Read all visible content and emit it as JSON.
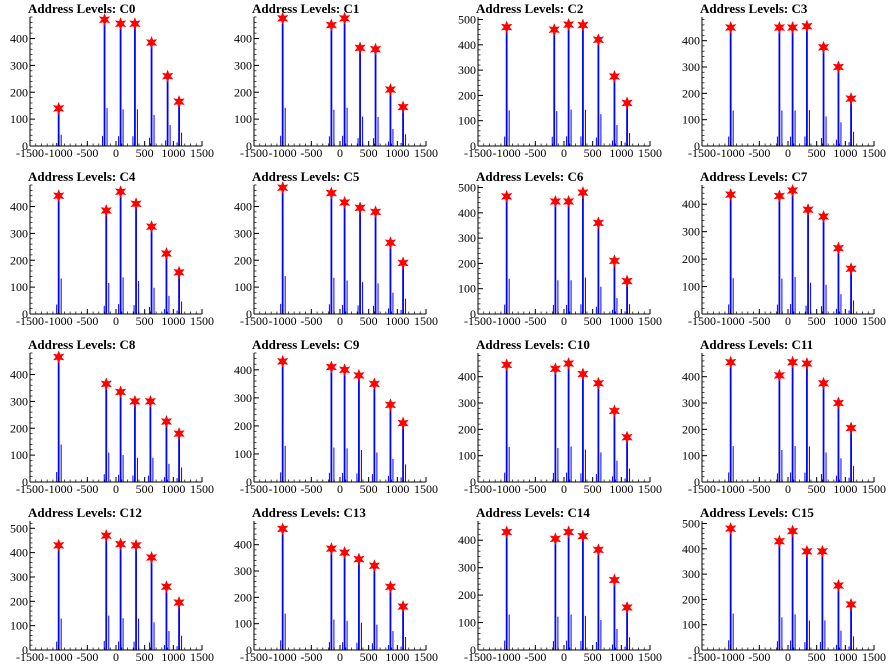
{
  "colors": {
    "background": "#ffffff",
    "histogram": "#0000ff",
    "marker": "#ff0000",
    "axis": "#000000"
  },
  "chart_data": [
    {
      "type": "bar",
      "title": "Address Levels: C0",
      "xlim": [
        -1500,
        1500
      ],
      "ylim": [
        0,
        480
      ],
      "yticks": [
        0,
        100,
        200,
        300,
        400
      ],
      "xtick_labels": [
        "-1500",
        "-1000",
        "-500",
        "0",
        "500",
        "1000",
        "1500"
      ],
      "peaks": [
        {
          "x": -1000,
          "y": 140
        },
        {
          "x": -200,
          "y": 470
        },
        {
          "x": 80,
          "y": 455
        },
        {
          "x": 330,
          "y": 455
        },
        {
          "x": 620,
          "y": 385
        },
        {
          "x": 900,
          "y": 260
        },
        {
          "x": 1100,
          "y": 165
        }
      ]
    },
    {
      "type": "bar",
      "title": "Address Levels: C1",
      "xlim": [
        -1500,
        1500
      ],
      "ylim": [
        0,
        480
      ],
      "yticks": [
        0,
        100,
        200,
        300,
        400
      ],
      "xtick_labels": [
        "-1500",
        "-1000",
        "-500",
        "0",
        "500",
        "1000",
        "1500"
      ],
      "peaks": [
        {
          "x": -1000,
          "y": 475
        },
        {
          "x": -150,
          "y": 450
        },
        {
          "x": 80,
          "y": 475
        },
        {
          "x": 350,
          "y": 365
        },
        {
          "x": 620,
          "y": 360
        },
        {
          "x": 880,
          "y": 210
        },
        {
          "x": 1100,
          "y": 145
        }
      ]
    },
    {
      "type": "bar",
      "title": "Address Levels: C2",
      "xlim": [
        -1500,
        1500
      ],
      "ylim": [
        0,
        510
      ],
      "yticks": [
        0,
        100,
        200,
        300,
        400,
        500
      ],
      "xtick_labels": [
        "-1500",
        "-1000",
        "-500",
        "0",
        "500",
        "1000",
        "1500"
      ],
      "peaks": [
        {
          "x": -1000,
          "y": 470
        },
        {
          "x": -170,
          "y": 460
        },
        {
          "x": 80,
          "y": 480
        },
        {
          "x": 330,
          "y": 478
        },
        {
          "x": 600,
          "y": 420
        },
        {
          "x": 880,
          "y": 275
        },
        {
          "x": 1100,
          "y": 170
        }
      ]
    },
    {
      "type": "bar",
      "title": "Address Levels: C3",
      "xlim": [
        -1500,
        1500
      ],
      "ylim": [
        0,
        490
      ],
      "yticks": [
        0,
        100,
        200,
        300,
        400
      ],
      "xtick_labels": [
        "-1500",
        "-1000",
        "-500",
        "0",
        "500",
        "1000",
        "1500"
      ],
      "peaks": [
        {
          "x": -1000,
          "y": 450
        },
        {
          "x": -150,
          "y": 450
        },
        {
          "x": 80,
          "y": 450
        },
        {
          "x": 330,
          "y": 455
        },
        {
          "x": 620,
          "y": 375
        },
        {
          "x": 880,
          "y": 300
        },
        {
          "x": 1100,
          "y": 180
        }
      ]
    },
    {
      "type": "bar",
      "title": "Address Levels: C4",
      "xlim": [
        -1500,
        1500
      ],
      "ylim": [
        0,
        480
      ],
      "yticks": [
        0,
        100,
        200,
        300,
        400
      ],
      "xtick_labels": [
        "-1500",
        "-1000",
        "-500",
        "0",
        "500",
        "1000",
        "1500"
      ],
      "peaks": [
        {
          "x": -1000,
          "y": 440
        },
        {
          "x": -170,
          "y": 385
        },
        {
          "x": 80,
          "y": 455
        },
        {
          "x": 350,
          "y": 410
        },
        {
          "x": 620,
          "y": 325
        },
        {
          "x": 880,
          "y": 225
        },
        {
          "x": 1100,
          "y": 155
        }
      ]
    },
    {
      "type": "bar",
      "title": "Address Levels: C5",
      "xlim": [
        -1500,
        1500
      ],
      "ylim": [
        0,
        480
      ],
      "yticks": [
        0,
        100,
        200,
        300,
        400
      ],
      "xtick_labels": [
        "-1500",
        "-1000",
        "-500",
        "0",
        "500",
        "1000",
        "1500"
      ],
      "peaks": [
        {
          "x": -1000,
          "y": 470
        },
        {
          "x": -150,
          "y": 450
        },
        {
          "x": 80,
          "y": 415
        },
        {
          "x": 350,
          "y": 395
        },
        {
          "x": 620,
          "y": 380
        },
        {
          "x": 880,
          "y": 265
        },
        {
          "x": 1100,
          "y": 190
        }
      ]
    },
    {
      "type": "bar",
      "title": "Address Levels: C6",
      "xlim": [
        -1500,
        1500
      ],
      "ylim": [
        0,
        510
      ],
      "yticks": [
        0,
        100,
        200,
        300,
        400,
        500
      ],
      "xtick_labels": [
        "-1500",
        "-1000",
        "-500",
        "0",
        "500",
        "1000",
        "1500"
      ],
      "peaks": [
        {
          "x": -1000,
          "y": 465
        },
        {
          "x": -150,
          "y": 445
        },
        {
          "x": 80,
          "y": 445
        },
        {
          "x": 330,
          "y": 480
        },
        {
          "x": 600,
          "y": 360
        },
        {
          "x": 880,
          "y": 210
        },
        {
          "x": 1100,
          "y": 130
        }
      ]
    },
    {
      "type": "bar",
      "title": "Address Levels: C7",
      "xlim": [
        -1500,
        1500
      ],
      "ylim": [
        0,
        470
      ],
      "yticks": [
        0,
        100,
        200,
        300,
        400
      ],
      "xtick_labels": [
        "-1500",
        "-1000",
        "-500",
        "0",
        "500",
        "1000",
        "1500"
      ],
      "peaks": [
        {
          "x": -1000,
          "y": 435
        },
        {
          "x": -150,
          "y": 430
        },
        {
          "x": 80,
          "y": 450
        },
        {
          "x": 350,
          "y": 380
        },
        {
          "x": 620,
          "y": 355
        },
        {
          "x": 880,
          "y": 240
        },
        {
          "x": 1100,
          "y": 165
        }
      ]
    },
    {
      "type": "bar",
      "title": "Address Levels: C8",
      "xlim": [
        -1500,
        1500
      ],
      "ylim": [
        0,
        480
      ],
      "yticks": [
        0,
        100,
        200,
        300,
        400
      ],
      "xtick_labels": [
        "-1500",
        "-1000",
        "-500",
        "0",
        "500",
        "1000",
        "1500"
      ],
      "peaks": [
        {
          "x": -1000,
          "y": 465
        },
        {
          "x": -170,
          "y": 365
        },
        {
          "x": 80,
          "y": 335
        },
        {
          "x": 330,
          "y": 300
        },
        {
          "x": 600,
          "y": 300
        },
        {
          "x": 880,
          "y": 225
        },
        {
          "x": 1100,
          "y": 180
        }
      ]
    },
    {
      "type": "bar",
      "title": "Address Levels: C9",
      "xlim": [
        -1500,
        1500
      ],
      "ylim": [
        0,
        460
      ],
      "yticks": [
        0,
        100,
        200,
        300,
        400
      ],
      "xtick_labels": [
        "-1500",
        "-1000",
        "-500",
        "0",
        "500",
        "1000",
        "1500"
      ],
      "peaks": [
        {
          "x": -1000,
          "y": 430
        },
        {
          "x": -150,
          "y": 410
        },
        {
          "x": 80,
          "y": 400
        },
        {
          "x": 330,
          "y": 380
        },
        {
          "x": 600,
          "y": 350
        },
        {
          "x": 880,
          "y": 275
        },
        {
          "x": 1100,
          "y": 210
        }
      ]
    },
    {
      "type": "bar",
      "title": "Address Levels: C10",
      "xlim": [
        -1500,
        1500
      ],
      "ylim": [
        0,
        490
      ],
      "yticks": [
        0,
        100,
        200,
        300,
        400
      ],
      "xtick_labels": [
        "-1500",
        "-1000",
        "-500",
        "0",
        "500",
        "1000",
        "1500"
      ],
      "peaks": [
        {
          "x": -1000,
          "y": 445
        },
        {
          "x": -150,
          "y": 430
        },
        {
          "x": 80,
          "y": 450
        },
        {
          "x": 330,
          "y": 410
        },
        {
          "x": 600,
          "y": 375
        },
        {
          "x": 880,
          "y": 270
        },
        {
          "x": 1100,
          "y": 170
        }
      ]
    },
    {
      "type": "bar",
      "title": "Address Levels: C11",
      "xlim": [
        -1500,
        1500
      ],
      "ylim": [
        0,
        490
      ],
      "yticks": [
        0,
        100,
        200,
        300,
        400
      ],
      "xtick_labels": [
        "-1500",
        "-1000",
        "-500",
        "0",
        "500",
        "1000",
        "1500"
      ],
      "peaks": [
        {
          "x": -1000,
          "y": 455
        },
        {
          "x": -150,
          "y": 405
        },
        {
          "x": 80,
          "y": 455
        },
        {
          "x": 330,
          "y": 450
        },
        {
          "x": 620,
          "y": 375
        },
        {
          "x": 880,
          "y": 300
        },
        {
          "x": 1100,
          "y": 205
        }
      ]
    },
    {
      "type": "bar",
      "title": "Address Levels: C12",
      "xlim": [
        -1500,
        1500
      ],
      "ylim": [
        0,
        530
      ],
      "yticks": [
        0,
        100,
        200,
        300,
        400,
        500
      ],
      "xtick_labels": [
        "-1500",
        "-1000",
        "-500",
        "0",
        "500",
        "1000",
        "1500"
      ],
      "peaks": [
        {
          "x": -1000,
          "y": 430
        },
        {
          "x": -170,
          "y": 470
        },
        {
          "x": 80,
          "y": 435
        },
        {
          "x": 350,
          "y": 430
        },
        {
          "x": 620,
          "y": 380
        },
        {
          "x": 880,
          "y": 260
        },
        {
          "x": 1100,
          "y": 195
        }
      ]
    },
    {
      "type": "bar",
      "title": "Address Levels: C13",
      "xlim": [
        -1500,
        1500
      ],
      "ylim": [
        0,
        490
      ],
      "yticks": [
        0,
        100,
        200,
        300,
        400
      ],
      "xtick_labels": [
        "-1500",
        "-1000",
        "-500",
        "0",
        "500",
        "1000",
        "1500"
      ],
      "peaks": [
        {
          "x": -1000,
          "y": 460
        },
        {
          "x": -150,
          "y": 385
        },
        {
          "x": 80,
          "y": 370
        },
        {
          "x": 330,
          "y": 345
        },
        {
          "x": 600,
          "y": 320
        },
        {
          "x": 880,
          "y": 240
        },
        {
          "x": 1100,
          "y": 165
        }
      ]
    },
    {
      "type": "bar",
      "title": "Address Levels: C14",
      "xlim": [
        -1500,
        1500
      ],
      "ylim": [
        0,
        470
      ],
      "yticks": [
        0,
        100,
        200,
        300,
        400
      ],
      "xtick_labels": [
        "-1500",
        "-1000",
        "-500",
        "0",
        "500",
        "1000",
        "1500"
      ],
      "peaks": [
        {
          "x": -1000,
          "y": 430
        },
        {
          "x": -150,
          "y": 405
        },
        {
          "x": 80,
          "y": 430
        },
        {
          "x": 330,
          "y": 415
        },
        {
          "x": 600,
          "y": 365
        },
        {
          "x": 880,
          "y": 255
        },
        {
          "x": 1100,
          "y": 155
        }
      ]
    },
    {
      "type": "bar",
      "title": "Address Levels: C15",
      "xlim": [
        -1500,
        1500
      ],
      "ylim": [
        0,
        510
      ],
      "yticks": [
        0,
        100,
        200,
        300,
        400,
        500
      ],
      "xtick_labels": [
        "-1500",
        "-1000",
        "-500",
        "0",
        "500",
        "1000",
        "1500"
      ],
      "peaks": [
        {
          "x": -1000,
          "y": 480
        },
        {
          "x": -150,
          "y": 430
        },
        {
          "x": 80,
          "y": 470
        },
        {
          "x": 330,
          "y": 390
        },
        {
          "x": 600,
          "y": 390
        },
        {
          "x": 880,
          "y": 255
        },
        {
          "x": 1100,
          "y": 180
        }
      ]
    }
  ]
}
